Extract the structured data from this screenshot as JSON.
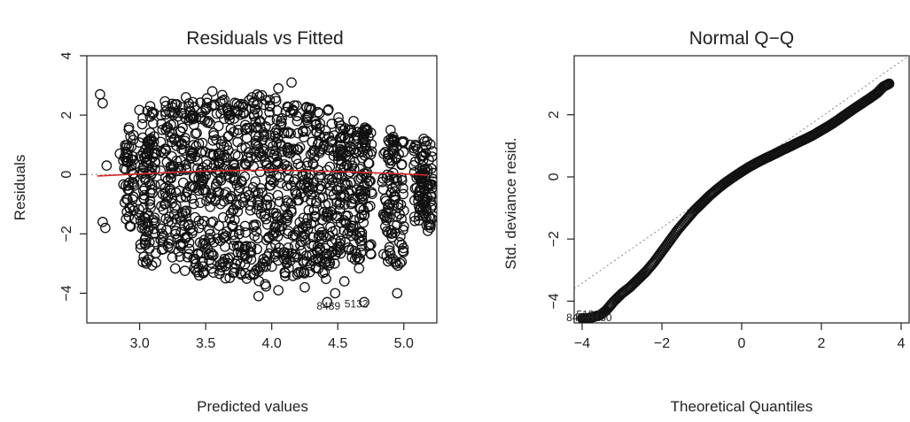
{
  "chart_data": [
    {
      "type": "scatter",
      "title": "Residuals vs Fitted",
      "xlabel": "Predicted values",
      "ylabel": "Residuals",
      "xlim": [
        2.6,
        5.25
      ],
      "ylim": [
        -5.0,
        4.0
      ],
      "x_ticks": [
        "3.0",
        "3.5",
        "4.0",
        "4.5",
        "5.0"
      ],
      "y_ticks": [
        "4",
        "2",
        "0",
        "−2",
        "−4"
      ],
      "x_tick_values": [
        3.0,
        3.5,
        4.0,
        4.5,
        5.0
      ],
      "y_tick_values": [
        4,
        2,
        0,
        -2,
        -4
      ],
      "marker": "open-circle",
      "zero_line": {
        "style": "dotted",
        "color": "#888888"
      },
      "smoother": {
        "color": "#d62728",
        "x": [
          2.68,
          3.0,
          3.5,
          4.0,
          4.5,
          5.0,
          5.18
        ],
        "y": [
          -0.05,
          0.02,
          0.12,
          0.15,
          0.1,
          0.02,
          -0.02
        ]
      },
      "point_labels": [
        {
          "text": "8489",
          "x": 4.43,
          "y": -4.55
        },
        {
          "text": "5132",
          "x": 4.64,
          "y": -4.48
        }
      ],
      "points_sample": {
        "x": [
          2.7,
          2.72,
          2.72,
          2.74,
          2.75,
          2.85,
          3.05,
          3.08,
          3.35,
          3.45,
          3.55,
          3.65,
          3.75,
          3.85,
          3.95,
          4.05,
          4.15,
          4.25,
          4.35,
          4.42,
          4.48,
          4.55,
          4.62,
          4.7,
          4.9,
          4.95,
          5.05,
          5.15,
          3.9,
          4.05
        ],
        "y": [
          2.7,
          2.4,
          -1.6,
          -1.8,
          0.3,
          0.7,
          -3.0,
          2.3,
          2.6,
          -3.4,
          2.8,
          -3.5,
          2.3,
          2.6,
          -3.7,
          2.9,
          3.1,
          -3.8,
          2.1,
          -4.3,
          -4.0,
          -3.6,
          1.8,
          -4.3,
          1.5,
          -4.0,
          1.0,
          1.2,
          -4.1,
          -3.9
        ]
      },
      "dense_columns": [
        {
          "x": 2.92,
          "y_min": -1.8,
          "y_max": 1.6
        },
        {
          "x": 3.04,
          "y_min": -3.0,
          "y_max": 2.3
        },
        {
          "x": 3.08,
          "y_min": -3.2,
          "y_max": 2.2
        },
        {
          "x": 3.2,
          "y_min": -2.6,
          "y_max": 2.5
        },
        {
          "x": 3.28,
          "y_min": -3.2,
          "y_max": 2.6
        },
        {
          "x": 3.36,
          "y_min": -3.3,
          "y_max": 2.5
        },
        {
          "x": 3.44,
          "y_min": -3.3,
          "y_max": 2.6
        },
        {
          "x": 3.52,
          "y_min": -3.4,
          "y_max": 2.7
        },
        {
          "x": 3.6,
          "y_min": -3.4,
          "y_max": 2.7
        },
        {
          "x": 3.68,
          "y_min": -3.5,
          "y_max": 2.6
        },
        {
          "x": 3.76,
          "y_min": -3.5,
          "y_max": 2.6
        },
        {
          "x": 3.84,
          "y_min": -3.6,
          "y_max": 2.6
        },
        {
          "x": 3.92,
          "y_min": -3.7,
          "y_max": 2.7
        },
        {
          "x": 4.0,
          "y_min": -3.8,
          "y_max": 2.6
        },
        {
          "x": 4.08,
          "y_min": -3.7,
          "y_max": 2.5
        },
        {
          "x": 4.16,
          "y_min": -3.6,
          "y_max": 2.5
        },
        {
          "x": 4.24,
          "y_min": -3.4,
          "y_max": 2.4
        },
        {
          "x": 4.32,
          "y_min": -3.3,
          "y_max": 2.3
        },
        {
          "x": 4.4,
          "y_min": -3.6,
          "y_max": 2.3
        },
        {
          "x": 4.48,
          "y_min": -3.0,
          "y_max": 2.0
        },
        {
          "x": 4.56,
          "y_min": -2.6,
          "y_max": 1.7
        },
        {
          "x": 4.64,
          "y_min": -3.2,
          "y_max": 1.6
        },
        {
          "x": 4.72,
          "y_min": -2.8,
          "y_max": 1.6
        },
        {
          "x": 4.88,
          "y_min": -3.0,
          "y_max": 1.3
        },
        {
          "x": 4.96,
          "y_min": -3.1,
          "y_max": 1.3
        },
        {
          "x": 5.12,
          "y_min": -1.6,
          "y_max": 1.0
        },
        {
          "x": 5.18,
          "y_min": -2.0,
          "y_max": 1.2
        }
      ]
    },
    {
      "type": "scatter",
      "title": "Normal Q−Q",
      "xlabel": "Theoretical Quantiles",
      "ylabel": "Std. deviance resid.",
      "xlim": [
        -4.2,
        4.2
      ],
      "ylim": [
        -4.7,
        3.9
      ],
      "x_ticks": [
        "−4",
        "−2",
        "0",
        "2",
        "4"
      ],
      "y_ticks": [
        "2",
        "0",
        "−2",
        "−4"
      ],
      "x_tick_values": [
        -4,
        -2,
        0,
        2,
        4
      ],
      "y_tick_values": [
        2,
        0,
        -2,
        -4
      ],
      "marker": "open-circle",
      "reference_line": {
        "style": "dotted",
        "color": "#888888",
        "x": [
          -4.2,
          4.2
        ],
        "y": [
          -3.6,
          3.9
        ]
      },
      "point_labels": [
        {
          "text": "8489",
          "x": -4.1,
          "y": -4.65
        },
        {
          "text": "5132",
          "x": -3.85,
          "y": -4.55
        },
        {
          "text": "5180",
          "x": -3.55,
          "y": -4.65
        }
      ],
      "points": {
        "x": [
          -4.0,
          -3.85,
          -3.7,
          -3.55,
          -3.4,
          -3.2,
          -3.0,
          -2.8,
          -2.6,
          -2.4,
          -2.2,
          -2.0,
          -1.8,
          -1.6,
          -1.4,
          -1.2,
          -1.0,
          -0.8,
          -0.6,
          -0.4,
          -0.2,
          0.0,
          0.2,
          0.4,
          0.6,
          0.8,
          1.0,
          1.2,
          1.4,
          1.6,
          1.8,
          2.0,
          2.2,
          2.4,
          2.6,
          2.8,
          3.0,
          3.2,
          3.4,
          3.55,
          3.7
        ],
        "y": [
          -4.55,
          -4.55,
          -4.5,
          -4.45,
          -4.3,
          -4.0,
          -3.75,
          -3.55,
          -3.3,
          -3.05,
          -2.75,
          -2.4,
          -2.05,
          -1.7,
          -1.4,
          -1.1,
          -0.85,
          -0.6,
          -0.38,
          -0.18,
          0.0,
          0.17,
          0.33,
          0.47,
          0.6,
          0.72,
          0.85,
          0.97,
          1.1,
          1.22,
          1.35,
          1.5,
          1.65,
          1.82,
          2.0,
          2.18,
          2.35,
          2.52,
          2.7,
          2.9,
          3.0
        ]
      }
    }
  ]
}
